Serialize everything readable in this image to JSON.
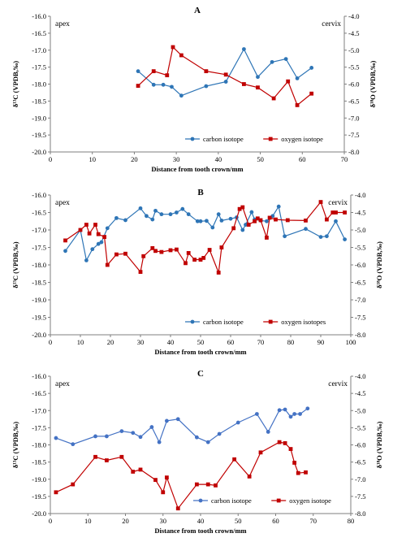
{
  "chart_data": [
    {
      "type": "line",
      "title": "A",
      "xlabel": "Distance from tooth crown/mm",
      "ylabel": "δ¹³C (VPDB,‰)",
      "y2label": "δ¹⁸O (VPDB,‰)",
      "xlim": [
        0,
        70
      ],
      "ylim": [
        -20,
        -16
      ],
      "y2lim": [
        -8,
        -4
      ],
      "xticks": [
        "0",
        "10",
        "20",
        "30",
        "40",
        "50",
        "60",
        "70"
      ],
      "yticks": [
        "-20.0",
        "-19.5",
        "-19.0",
        "-18.5",
        "-18.0",
        "-17.5",
        "-17.0",
        "-16.5",
        "-16.0"
      ],
      "y2ticks": [
        "-8.0",
        "-7.5",
        "-7.0",
        "-6.5",
        "-6.0",
        "-5.5",
        "-5.0",
        "-4.5",
        "-4.0"
      ],
      "annotations": {
        "left": "apex",
        "right": "cervix"
      },
      "grid": false,
      "legend_position": "bottom-right",
      "series": [
        {
          "name": "carbon isotope",
          "axis": "left",
          "color": "#2e75b6",
          "marker": "circle",
          "x": [
            20.9,
            24.6,
            26.9,
            28.9,
            31.2,
            37.1,
            41.8,
            46.1,
            49.4,
            52.8,
            56.1,
            58.8,
            62.2
          ],
          "y": [
            -17.62,
            -18.02,
            -18.02,
            -18.08,
            -18.34,
            -18.06,
            -17.93,
            -16.97,
            -17.79,
            -17.35,
            -17.26,
            -17.83,
            -17.52
          ]
        },
        {
          "name": "oxygen isotope",
          "axis": "right",
          "color": "#c00000",
          "marker": "square",
          "x": [
            20.9,
            24.6,
            27.8,
            29.2,
            31.2,
            37.1,
            41.8,
            46.1,
            49.4,
            53.2,
            56.6,
            58.8,
            62.2
          ],
          "y": [
            -6.05,
            -5.62,
            -5.74,
            -4.91,
            -5.15,
            -5.62,
            -5.72,
            -6.0,
            -6.1,
            -6.42,
            -5.92,
            -6.62,
            -6.28
          ]
        }
      ]
    },
    {
      "type": "line",
      "title": "B",
      "xlabel": "Distance from tooth crown/mm",
      "ylabel": "δ¹³C (VPDB,‰)",
      "y2label": "δ¹⁸O (VPDB,‰)",
      "xlim": [
        0,
        100
      ],
      "ylim": [
        -20,
        -16
      ],
      "y2lim": [
        -8,
        -4
      ],
      "xticks": [
        "0",
        "10",
        "20",
        "30",
        "40",
        "50",
        "60",
        "70",
        "80",
        "90",
        "100"
      ],
      "yticks": [
        "-20.0",
        "-19.5",
        "-19.0",
        "-18.5",
        "-18.0",
        "-17.5",
        "-17.0",
        "-16.5",
        "-16.0"
      ],
      "y2ticks": [
        "-8.0",
        "-7.5",
        "-7.0",
        "-6.5",
        "-6.0",
        "-5.5",
        "-5.0",
        "-4.5",
        "-4.0"
      ],
      "annotations": {
        "left": "apex",
        "right": "cervix"
      },
      "grid": false,
      "legend_position": "bottom-right",
      "series": [
        {
          "name": "carbon isotope",
          "axis": "left",
          "color": "#2e75b6",
          "marker": "circle",
          "x": [
            5,
            10,
            12,
            14,
            16,
            17,
            19,
            22,
            25,
            30,
            32,
            34,
            35,
            37,
            40,
            42,
            44,
            46,
            49,
            50,
            52,
            54,
            56,
            57,
            60,
            62,
            64,
            65,
            67,
            68,
            70,
            72,
            74,
            76,
            78,
            85,
            90,
            92,
            95,
            98
          ],
          "y": [
            -17.6,
            -17.0,
            -17.87,
            -17.55,
            -17.4,
            -17.35,
            -16.95,
            -16.66,
            -16.72,
            -16.38,
            -16.6,
            -16.7,
            -16.45,
            -16.55,
            -16.55,
            -16.5,
            -16.4,
            -16.55,
            -16.75,
            -16.75,
            -16.74,
            -16.93,
            -16.55,
            -16.73,
            -16.68,
            -16.64,
            -17.0,
            -16.85,
            -16.49,
            -16.7,
            -16.73,
            -16.75,
            -16.6,
            -16.33,
            -17.18,
            -16.97,
            -17.2,
            -17.18,
            -16.75,
            -17.27
          ]
        },
        {
          "name": "oxygen isotopes",
          "axis": "right",
          "color": "#c00000",
          "marker": "square",
          "x": [
            5,
            10,
            12,
            13,
            15,
            16,
            18,
            19,
            22,
            25,
            30,
            31,
            34,
            35,
            37,
            40,
            42,
            45,
            46,
            48,
            50,
            51,
            53,
            56,
            57,
            61,
            63,
            64,
            66,
            68,
            69,
            70,
            72,
            73,
            75,
            79,
            85,
            90,
            92,
            94,
            95,
            98
          ],
          "y": [
            -5.3,
            -5.0,
            -4.85,
            -5.1,
            -4.85,
            -5.12,
            -5.2,
            -6.0,
            -5.7,
            -5.68,
            -6.2,
            -5.75,
            -5.52,
            -5.6,
            -5.63,
            -5.58,
            -5.56,
            -5.95,
            -5.66,
            -5.85,
            -5.85,
            -5.8,
            -5.57,
            -6.22,
            -5.5,
            -4.95,
            -4.4,
            -4.35,
            -4.85,
            -4.75,
            -4.67,
            -4.72,
            -5.22,
            -4.65,
            -4.7,
            -4.72,
            -4.73,
            -4.2,
            -4.7,
            -4.5,
            -4.5,
            -4.5
          ]
        }
      ]
    },
    {
      "type": "line",
      "title": "C",
      "xlabel": "Distance from tooth crown/mm",
      "ylabel": "δ¹³C (VPDB,‰)",
      "y2label": "δ¹⁸O (VPDB,‰)",
      "xlim": [
        0,
        80
      ],
      "ylim": [
        -20,
        -16
      ],
      "y2lim": [
        -8,
        -4
      ],
      "xticks": [
        "0",
        "10",
        "20",
        "30",
        "40",
        "50",
        "60",
        "70",
        "80"
      ],
      "yticks": [
        "-20.0",
        "-19.5",
        "-19.0",
        "-18.5",
        "-18.0",
        "-17.5",
        "-17.0",
        "-16.5",
        "-16.0"
      ],
      "y2ticks": [
        "-8.0",
        "-7.5",
        "-7.0",
        "-6.5",
        "-6.0",
        "-5.5",
        "-5.0",
        "-4.5",
        "-4.0"
      ],
      "annotations": {
        "left": "apex",
        "right": "cervix"
      },
      "grid": false,
      "legend_position": "bottom-right",
      "series": [
        {
          "name": "carbon isotope",
          "axis": "left",
          "color": "#4472c4",
          "marker": "circle",
          "x": [
            1.5,
            6,
            12,
            15,
            19,
            22,
            24,
            27,
            29,
            31,
            34,
            39,
            42,
            45,
            50,
            55,
            58,
            61,
            62.5,
            64,
            65,
            66.5,
            68.5
          ],
          "y": [
            -17.8,
            -17.98,
            -17.75,
            -17.75,
            -17.6,
            -17.65,
            -17.77,
            -17.48,
            -17.92,
            -17.3,
            -17.25,
            -17.78,
            -17.92,
            -17.68,
            -17.35,
            -17.1,
            -17.62,
            -16.99,
            -16.97,
            -17.18,
            -17.1,
            -17.1,
            -16.94
          ]
        },
        {
          "name": "oxygen isotope",
          "axis": "right",
          "color": "#c00000",
          "marker": "square",
          "x": [
            1.5,
            6,
            12,
            15,
            19,
            22,
            24,
            28,
            30,
            31,
            34,
            39,
            42,
            44,
            49,
            53,
            56,
            61,
            62.5,
            64,
            65,
            66,
            68
          ],
          "y": [
            -7.38,
            -7.15,
            -6.35,
            -6.45,
            -6.35,
            -6.78,
            -6.72,
            -7.02,
            -7.38,
            -6.95,
            -7.85,
            -7.15,
            -7.15,
            -7.18,
            -6.42,
            -6.92,
            -6.22,
            -5.92,
            -5.95,
            -6.12,
            -6.52,
            -6.82,
            -6.8
          ]
        }
      ]
    }
  ]
}
